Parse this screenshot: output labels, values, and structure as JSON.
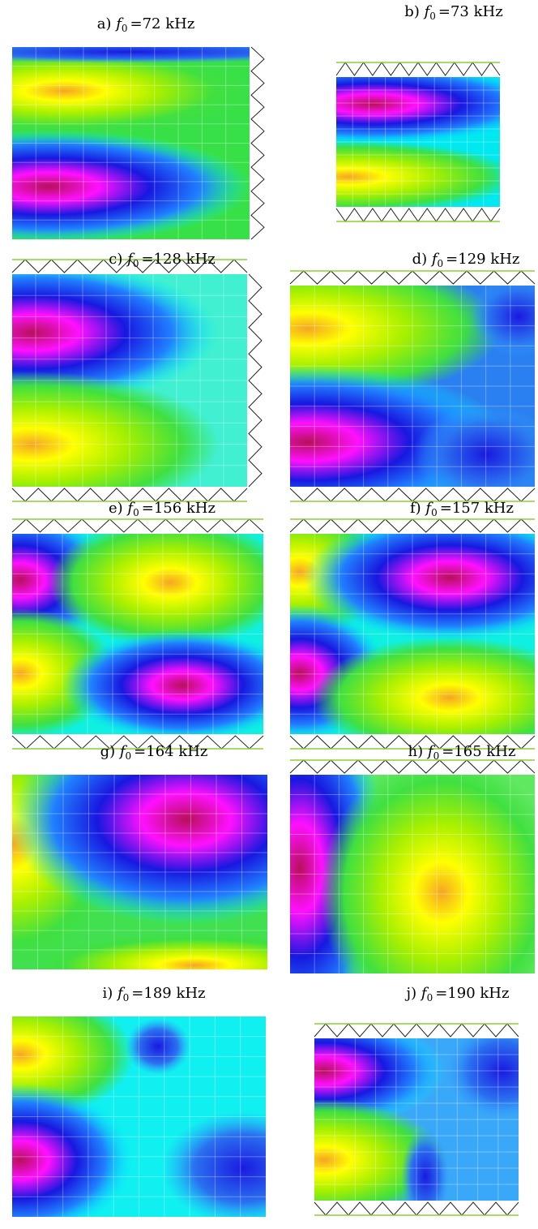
{
  "panels": [
    {
      "letter": "a)",
      "symbol": "f",
      "subscript": "0",
      "freq": "=72 kHz"
    },
    {
      "letter": "b)",
      "symbol": "f",
      "subscript": "0",
      "freq": "=73 kHz"
    },
    {
      "letter": "c)",
      "symbol": "f",
      "subscript": "0",
      "freq": "=128 kHz"
    },
    {
      "letter": "d)",
      "symbol": "f",
      "subscript": "0",
      "freq": "=129 kHz"
    },
    {
      "letter": "e)",
      "symbol": "f",
      "subscript": "0",
      "freq": "=156 kHz"
    },
    {
      "letter": "f)",
      "symbol": "f",
      "subscript": "0",
      "freq": "=157 kHz"
    },
    {
      "letter": "g)",
      "symbol": "f",
      "subscript": "0",
      "freq": "=164 kHz"
    },
    {
      "letter": "h)",
      "symbol": "f",
      "subscript": "0",
      "freq": "=165 kHz"
    },
    {
      "letter": "i)",
      "symbol": "f",
      "subscript": "0",
      "freq": "=189 kHz"
    },
    {
      "letter": "j)",
      "symbol": "f",
      "subscript": "0",
      "freq": "=190 kHz"
    }
  ]
}
